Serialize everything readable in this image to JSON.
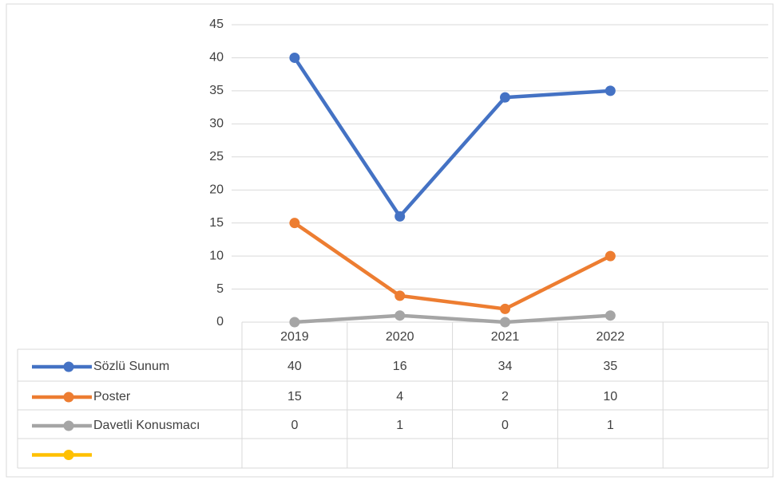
{
  "chart_data": {
    "type": "line",
    "categories": [
      "2019",
      "2020",
      "2021",
      "2022",
      null
    ],
    "series": [
      {
        "name": "Sözlü Sunum",
        "color": "#4472c4",
        "values": [
          40,
          16,
          34,
          35,
          null
        ]
      },
      {
        "name": "Poster",
        "color": "#ed7d31",
        "values": [
          15,
          4,
          2,
          10,
          null
        ]
      },
      {
        "name": "Davetli Konusmacı",
        "color": "#a5a5a5",
        "values": [
          0,
          1,
          0,
          1,
          null
        ]
      },
      {
        "color": "#ffc000",
        "values": [
          null,
          null,
          null,
          null,
          null
        ]
      }
    ],
    "ylim": [
      0,
      45
    ],
    "yticks": [
      0,
      5,
      10,
      15,
      20,
      25,
      30,
      35,
      40,
      45
    ],
    "grid": true,
    "data_table": true
  }
}
